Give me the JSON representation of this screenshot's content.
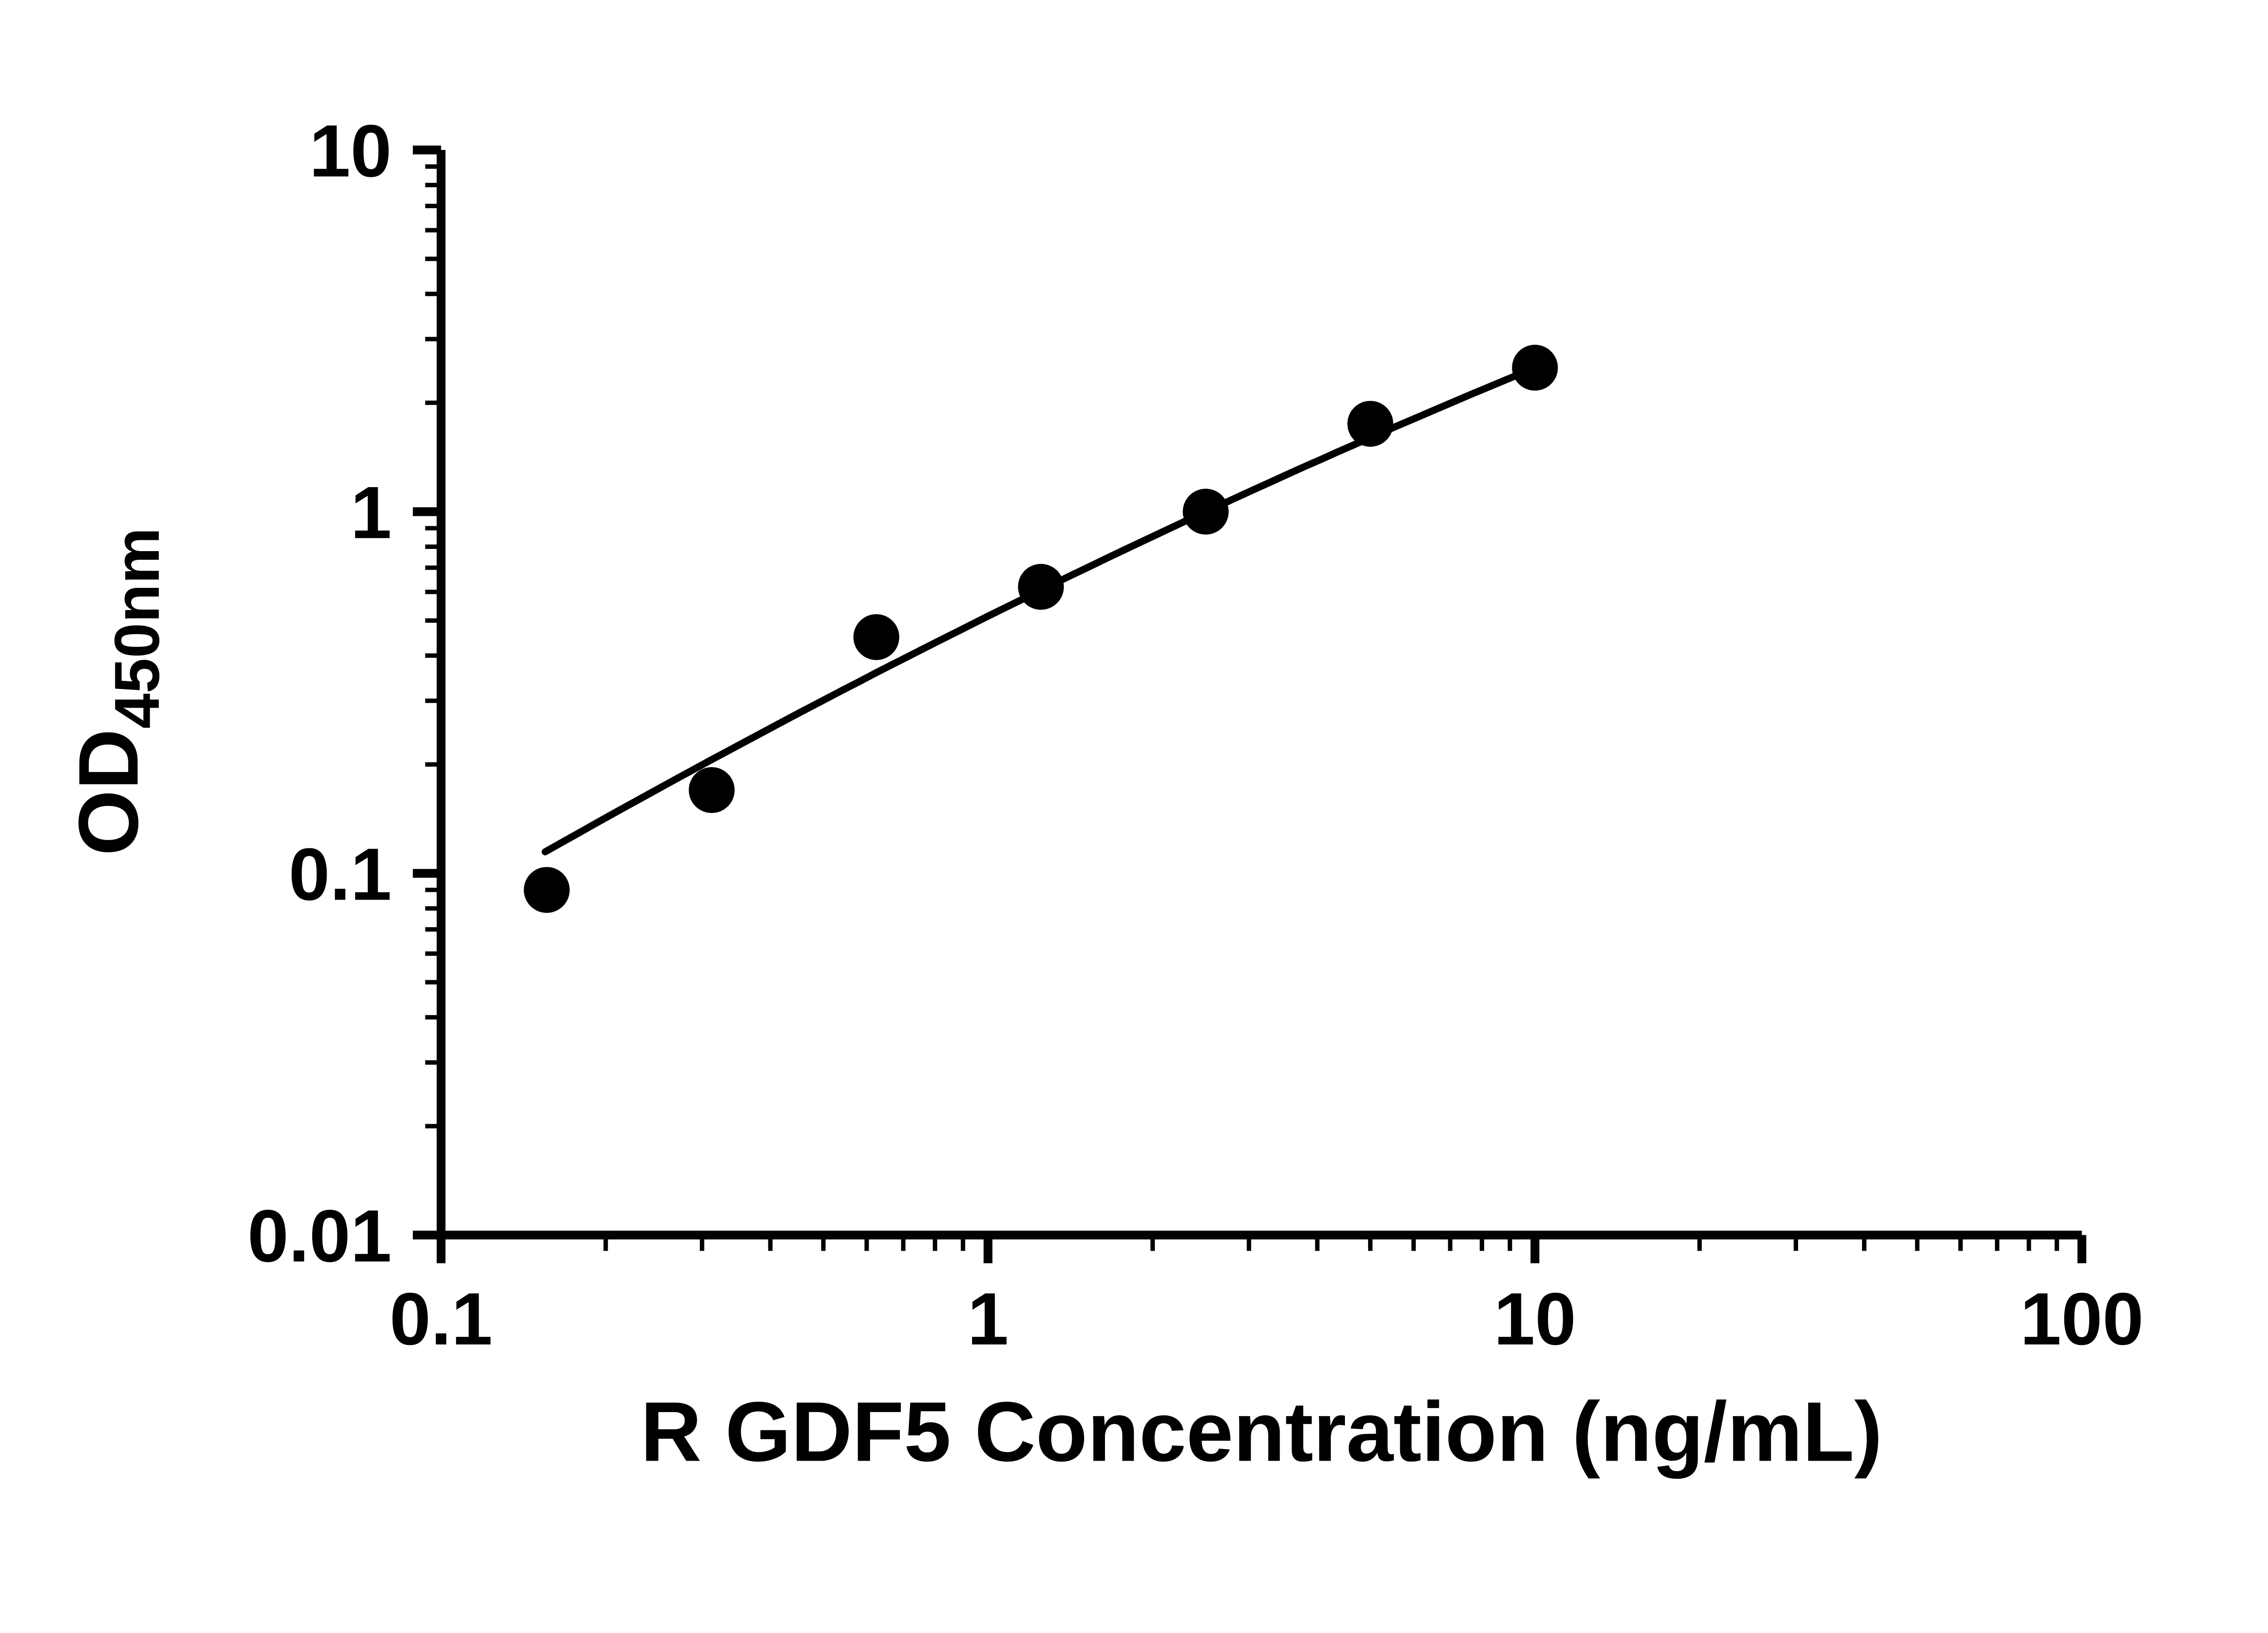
{
  "chart_data": {
    "type": "scatter",
    "title": "",
    "xlabel": "R GDF5 Concentration (ng/mL)",
    "ylabel_main": "OD",
    "ylabel_sub": "450nm",
    "x_scale": "log",
    "y_scale": "log",
    "xlim": [
      0.1,
      100
    ],
    "ylim": [
      0.01,
      10
    ],
    "x": [
      0.156,
      0.3125,
      0.625,
      1.25,
      2.5,
      5,
      10
    ],
    "y": [
      0.09,
      0.17,
      0.45,
      0.62,
      1.0,
      1.75,
      2.5
    ],
    "x_ticks": [
      {
        "value": 0.1,
        "label": "0.1"
      },
      {
        "value": 1,
        "label": "1"
      },
      {
        "value": 10,
        "label": "10"
      },
      {
        "value": 100,
        "label": "100"
      }
    ],
    "y_ticks": [
      {
        "value": 0.01,
        "label": "0.01"
      },
      {
        "value": 0.1,
        "label": "0.1"
      },
      {
        "value": 1,
        "label": "1"
      },
      {
        "value": 10,
        "label": "10"
      }
    ],
    "grid": false,
    "legend": "none",
    "marker_color": "#000000",
    "line_color": "#000000",
    "axis_color": "#000000",
    "background_color": "#ffffff",
    "trendline": {
      "type": "quadratic_log_fit",
      "coefficients": {
        "a": -0.289,
        "b": 0.752,
        "c": -0.0653
      },
      "x_range": [
        0.155,
        10
      ]
    }
  }
}
